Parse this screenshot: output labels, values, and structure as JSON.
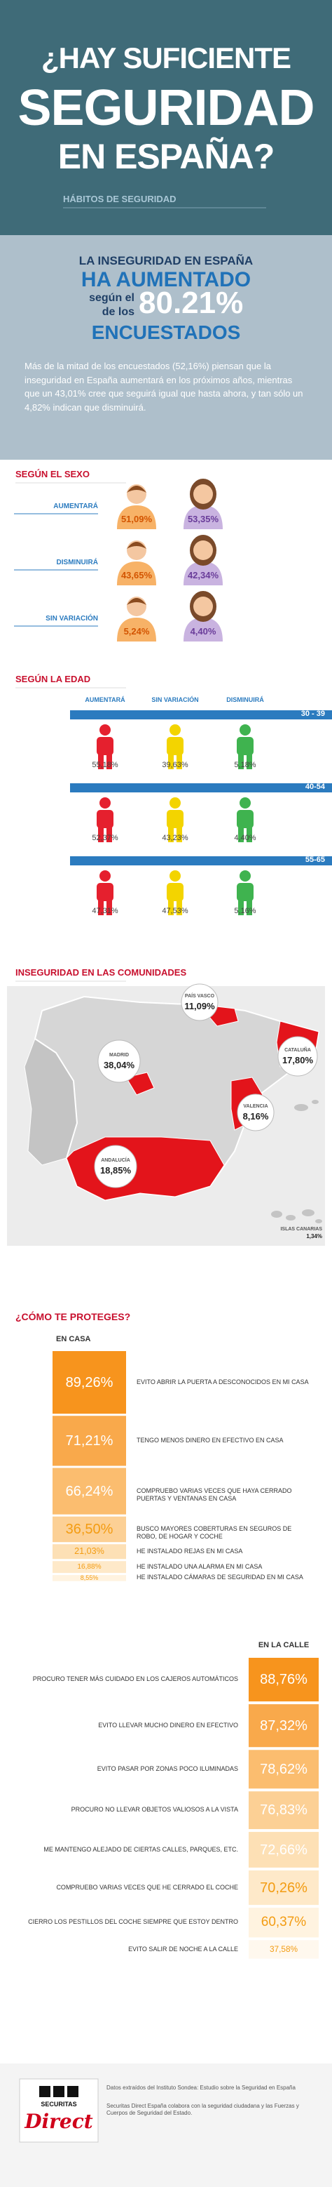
{
  "header": {
    "title_lines": [
      "¿HAY SUFICIENTE",
      "SEGURIDAD",
      "EN ESPAÑA?"
    ],
    "subtitle": "HÁBITOS DE SEGURIDAD"
  },
  "intro": {
    "line1": "LA INSEGURIDAD EN ESPAÑA",
    "line2": "HA AUMENTADO",
    "line3a": "según el",
    "line3b": "de los",
    "stat": "80.21%",
    "line4": "ENCUESTADOS",
    "paragraph": "Más de la mitad de los encuestados (52,16%) piensan que la inseguridad en España aumentará en los próximos años, mientras que un 43,01% cree que seguirá igual que hasta ahora, y tan sólo un 4,82% indican que disminuirá."
  },
  "by_sex": {
    "title": "SEGÚN EL SEXO",
    "rows": [
      {
        "label": "AUMENTARÁ",
        "male": "51,09%",
        "female": "53,35%"
      },
      {
        "label": "DISMINUIRÁ",
        "male": "43,65%",
        "female": "42,34%"
      },
      {
        "label": "SIN VARIACIÓN",
        "male": "5,24%",
        "female": "4,40%"
      }
    ]
  },
  "by_age": {
    "title": "SEGÚN LA EDAD",
    "columns": [
      "AUMENTARÁ",
      "SIN VARIACIÓN",
      "DISMINUIRÁ"
    ],
    "groups": [
      {
        "label": "30 - 39",
        "values": [
          "55,18%",
          "39,63%",
          "5,18%"
        ]
      },
      {
        "label": "40-54",
        "values": [
          "52,37%",
          "43,23%",
          "4,40%"
        ]
      },
      {
        "label": "55-65",
        "values": [
          "47,31%",
          "47,53%",
          "5,16%"
        ]
      }
    ]
  },
  "map": {
    "title": "INSEGURIDAD EN LAS COMUNIDADES",
    "regions": [
      {
        "name": "PAÍS VASCO",
        "label": "11,09%"
      },
      {
        "name": "CATALUÑA",
        "label": "17,80%"
      },
      {
        "name": "MADRID",
        "label": "38,04%"
      },
      {
        "name": "VALENCIA",
        "label": "8,16%"
      },
      {
        "name": "ANDALUCÍA",
        "label": "18,85%"
      },
      {
        "name": "ISLAS CANARIAS",
        "label": "1,34%"
      }
    ]
  },
  "protect": {
    "title": "¿CÓMO TE PROTEGES?",
    "home": {
      "title": "EN CASA",
      "items": [
        {
          "text": "EVITO ABRIR LA PUERTA A DESCONOCIDOS EN MI CASA",
          "value": 89.26,
          "label": "89,26%"
        },
        {
          "text": "TENGO MENOS DINERO EN EFECTIVO EN CASA",
          "value": 71.21,
          "label": "71,21%"
        },
        {
          "text": "COMPRUEBO VARIAS VECES QUE HAYA CERRADO PUERTAS Y VENTANAS EN CASA",
          "value": 66.24,
          "label": "66,24%"
        },
        {
          "text": "BUSCO MAYORES COBERTURAS EN SEGUROS DE ROBO, DE HOGAR Y COCHE",
          "value": 36.5,
          "label": "36,50%"
        },
        {
          "text": "HE INSTALADO REJAS EN MI CASA",
          "value": 21.03,
          "label": "21,03%"
        },
        {
          "text": "HE INSTALADO UNA ALARMA EN MI CASA",
          "value": 16.88,
          "label": "16,88%"
        },
        {
          "text": "HE INSTALADO CÁMARAS DE SEGURIDAD EN MI CASA",
          "value": 8.55,
          "label": "8,55%"
        }
      ]
    },
    "street": {
      "title": "EN LA CALLE",
      "items": [
        {
          "text": "PROCURO TENER MÁS CUIDADO EN LOS CAJEROS AUTOMÁTICOS",
          "value": 88.76,
          "label": "88,76%"
        },
        {
          "text": "EVITO LLEVAR MUCHO DINERO EN EFECTIVO",
          "value": 87.32,
          "label": "87,32%"
        },
        {
          "text": "EVITO PASAR POR ZONAS POCO ILUMINADAS",
          "value": 78.62,
          "label": "78,62%"
        },
        {
          "text": "PROCURO NO LLEVAR OBJETOS VALIOSOS A LA VISTA",
          "value": 76.83,
          "label": "76,83%"
        },
        {
          "text": "ME MANTENGO ALEJADO DE CIERTAS CALLES, PARQUES, ETC.",
          "value": 72.66,
          "label": "72,66%"
        },
        {
          "text": "COMPRUEBO VARIAS VECES QUE HE CERRADO EL COCHE",
          "value": 70.26,
          "label": "70,26%"
        },
        {
          "text": "CIERRO LOS PESTILLOS DEL COCHE SIEMPRE QUE ESTOY DENTRO",
          "value": 60.37,
          "label": "60,37%"
        },
        {
          "text": "EVITO SALIR DE NOCHE A LA CALLE",
          "value": 37.58,
          "label": "37,58%"
        }
      ]
    }
  },
  "footer": {
    "logo_top": "SECURITAS",
    "logo": "Direct",
    "lines": [
      "Datos extraídos del Instituto Sondea: Estudio sobre la Seguridad en España",
      "Securitas Direct España colabora con la seguridad ciudadana y las Fuerzas y Cuerpos de Seguridad del Estado."
    ]
  }
}
